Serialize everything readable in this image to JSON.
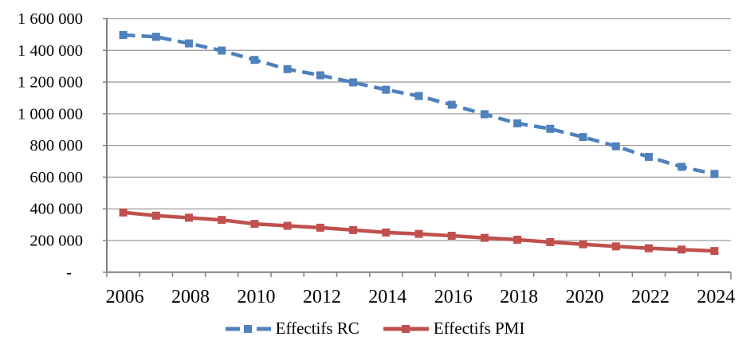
{
  "chart_data": {
    "type": "line",
    "title": "",
    "x": [
      2006,
      2007,
      2008,
      2009,
      2010,
      2011,
      2012,
      2013,
      2014,
      2015,
      2016,
      2017,
      2018,
      2019,
      2020,
      2021,
      2022,
      2023,
      2024
    ],
    "x_tick_label_every": 2,
    "series": [
      {
        "name": "Effectifs RC",
        "color": "#4F81BD",
        "line_style": "dashed",
        "marker": "square",
        "values": [
          1497000,
          1486000,
          1444000,
          1399000,
          1340000,
          1282000,
          1243000,
          1198000,
          1152000,
          1112000,
          1057000,
          997000,
          940000,
          905000,
          853000,
          795000,
          728000,
          665000,
          620000
        ]
      },
      {
        "name": "Effectifs PMI",
        "color": "#C0504D",
        "line_style": "solid",
        "marker": "square",
        "values": [
          377000,
          357000,
          344000,
          330000,
          305000,
          293000,
          281000,
          266000,
          251000,
          242000,
          230000,
          217000,
          205000,
          190000,
          176000,
          163000,
          151000,
          143000,
          134000
        ]
      }
    ],
    "ylim": [
      0,
      1600000
    ],
    "y_ticks": [
      {
        "value": 0,
        "label": "-"
      },
      {
        "value": 200000,
        "label": "200 000"
      },
      {
        "value": 400000,
        "label": "400 000"
      },
      {
        "value": 600000,
        "label": "600 000"
      },
      {
        "value": 800000,
        "label": "800 000"
      },
      {
        "value": 1000000,
        "label": "1 000 000"
      },
      {
        "value": 1200000,
        "label": "1 200 000"
      },
      {
        "value": 1400000,
        "label": "1 400 000"
      },
      {
        "value": 1600000,
        "label": "1 600 000"
      }
    ],
    "grid": true,
    "legend_position": "bottom",
    "colors": {
      "axis": "#808080",
      "gridline": "#9e9e9e",
      "text": "#000000",
      "background": "#ffffff"
    }
  }
}
